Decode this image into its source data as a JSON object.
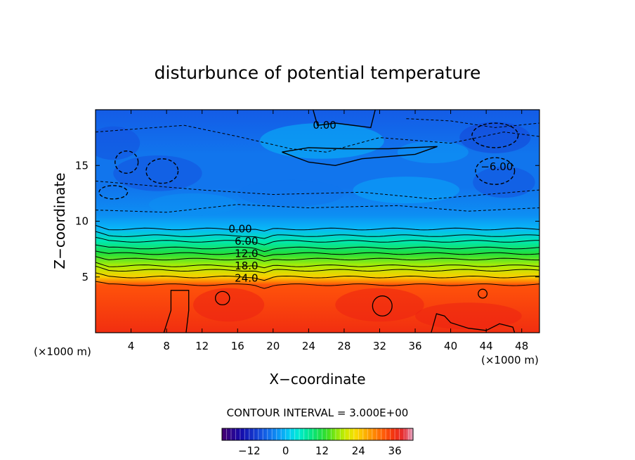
{
  "chart_data": {
    "type": "heatmap",
    "title": "disturbunce of potential temperature",
    "xlabel": "X−coordinate",
    "ylabel": "Z−coordinate",
    "x_unit_label": "(×1000 m)",
    "x_unit_label_right": "(×1000 m)",
    "xlim": [
      0,
      50
    ],
    "ylim": [
      0,
      20
    ],
    "x_ticks": [
      4,
      8,
      12,
      16,
      20,
      24,
      28,
      32,
      36,
      40,
      44,
      48
    ],
    "y_ticks": [
      5,
      10,
      15
    ],
    "contour_interval_label": "CONTOUR INTERVAL = 3.000E+00",
    "contour_labels": [
      {
        "text": "0.00",
        "x": 25.8,
        "y": 18.6
      },
      {
        "text": "−6.00",
        "x": 45.2,
        "y": 14.9
      },
      {
        "text": "0.00",
        "x": 16.3,
        "y": 9.3
      },
      {
        "text": "6.00",
        "x": 17.0,
        "y": 8.2
      },
      {
        "text": "12.0",
        "x": 17.0,
        "y": 7.1
      },
      {
        "text": "18.0",
        "x": 17.0,
        "y": 6.0
      },
      {
        "text": "24.0",
        "x": 17.0,
        "y": 4.9
      }
    ],
    "colorbar": {
      "min": -21,
      "max": 42,
      "ticks": [
        -12,
        0,
        12,
        24,
        36
      ],
      "tick_labels": [
        "−12",
        "0",
        "12",
        "24",
        "36"
      ]
    },
    "field": {
      "description_levels": [
        {
          "z": 0,
          "value": 36
        },
        {
          "z": 4.3,
          "value": 33
        },
        {
          "z": 5.0,
          "value": 24
        },
        {
          "z": 6.0,
          "value": 18
        },
        {
          "z": 7.1,
          "value": 12
        },
        {
          "z": 8.2,
          "value": 6
        },
        {
          "z": 9.3,
          "value": 0
        },
        {
          "z": 10.5,
          "value": -3
        },
        {
          "z": 13.0,
          "value": -5
        },
        {
          "z": 16.0,
          "value": -5
        },
        {
          "z": 18.0,
          "value": -6
        },
        {
          "z": 20.0,
          "value": -7
        }
      ]
    }
  }
}
